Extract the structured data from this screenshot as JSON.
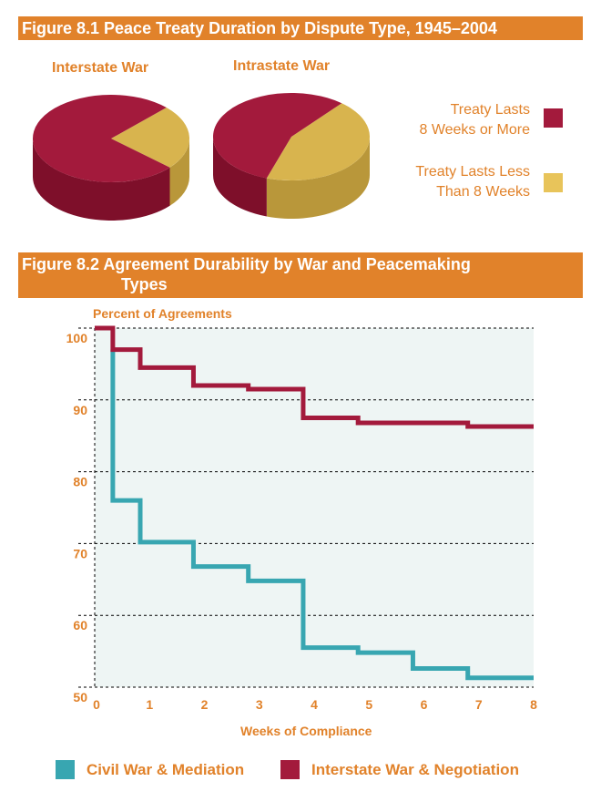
{
  "figure1": {
    "title": "Figure 8.1  Peace Treaty Duration by Dispute Type, 1945–2004"
  },
  "figure2": {
    "title_line1": "Figure 8.2  Agreement Durability by War and Peacemaking",
    "title_line2": "Types"
  },
  "chart_data": [
    {
      "type": "pie",
      "title": "Interstate War",
      "legend": [
        "Treaty Lasts 8 Weeks or More",
        "Treaty Lasts Less Than 8 Weeks"
      ],
      "values": [
        76,
        24
      ],
      "colors": [
        "#A31A3C",
        "#D8B44E"
      ]
    },
    {
      "type": "pie",
      "title": "Intrastate War",
      "legend": [
        "Treaty Lasts 8 Weeks or More",
        "Treaty Lasts Less Than 8 Weeks"
      ],
      "values": [
        56,
        44
      ],
      "colors": [
        "#A31A3C",
        "#D8B44E"
      ]
    },
    {
      "type": "line",
      "step": true,
      "ylabel": "Percent of Agreements",
      "xlabel": "Weeks of Compliance",
      "xlim": [
        0,
        8
      ],
      "ylim": [
        50,
        100
      ],
      "xticks": [
        "0",
        "1",
        "2",
        "3",
        "4",
        "5",
        "6",
        "7",
        "8"
      ],
      "yticks": [
        "50",
        "60",
        "70",
        "80",
        "90",
        "100"
      ],
      "grid": true,
      "legend_position": "bottom",
      "series": [
        {
          "name": "Civil War & Mediation",
          "color": "#38A6B1",
          "x": [
            0.33,
            0.83,
            1.8,
            2.8,
            3.8,
            4.8,
            5.8,
            6.8,
            8
          ],
          "y": [
            97,
            76,
            70.2,
            66.8,
            64.8,
            55.5,
            54.8,
            52.6,
            51.3
          ]
        },
        {
          "name": "Interstate War & Negotiation",
          "color": "#A31A3C",
          "x": [
            0,
            0.33,
            0.83,
            1.8,
            2.8,
            3.8,
            4.8,
            6.8,
            8
          ],
          "y": [
            100,
            97,
            94.5,
            92,
            91.5,
            87.5,
            86.8,
            86.3,
            86.3
          ]
        }
      ]
    }
  ],
  "legend1": {
    "long_line1": "Treaty Lasts",
    "long_line2": "8 Weeks or More",
    "short_line1": "Treaty Lasts Less",
    "short_line2": "Than 8 Weeks"
  }
}
